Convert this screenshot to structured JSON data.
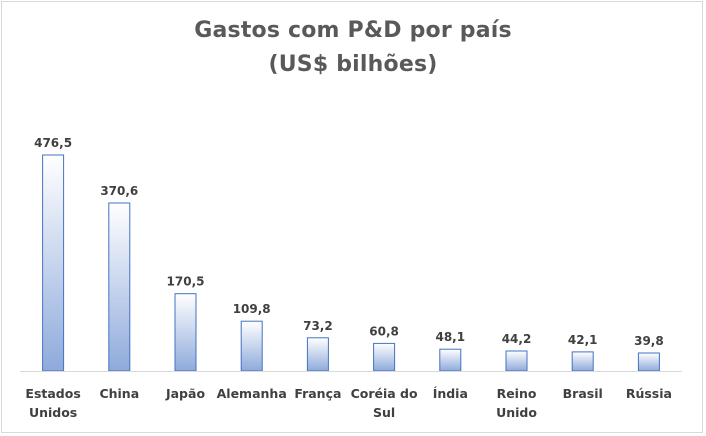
{
  "chart_data": {
    "type": "bar",
    "title": "Gastos com P&D por país\n(US$ bilhões)",
    "xlabel": "",
    "ylabel": "",
    "categories": [
      [
        "Estados",
        "Unidos"
      ],
      [
        "China"
      ],
      [
        "Japão"
      ],
      [
        "Alemanha"
      ],
      [
        "França"
      ],
      [
        "Coréia do",
        "Sul"
      ],
      [
        "Índia"
      ],
      [
        "Reino",
        "Unido"
      ],
      [
        "Brasil"
      ],
      [
        "Rússia"
      ]
    ],
    "values": [
      476.5,
      370.6,
      170.5,
      109.8,
      73.2,
      60.8,
      48.1,
      44.2,
      42.1,
      39.8
    ],
    "value_labels": [
      "476,5",
      "370,6",
      "170,5",
      "109,8",
      "73,2",
      "60,8",
      "48,1",
      "44,2",
      "42,1",
      "39,8"
    ],
    "ylim": [
      0,
      476.5
    ],
    "grid": false,
    "legend": "none",
    "colors": {
      "bar_top": "#ffffff",
      "bar_bottom": "#8eaadb",
      "bar_border": "#4472c4",
      "axis": "#d9d9d9",
      "text": "#404040",
      "title": "#595959"
    }
  }
}
